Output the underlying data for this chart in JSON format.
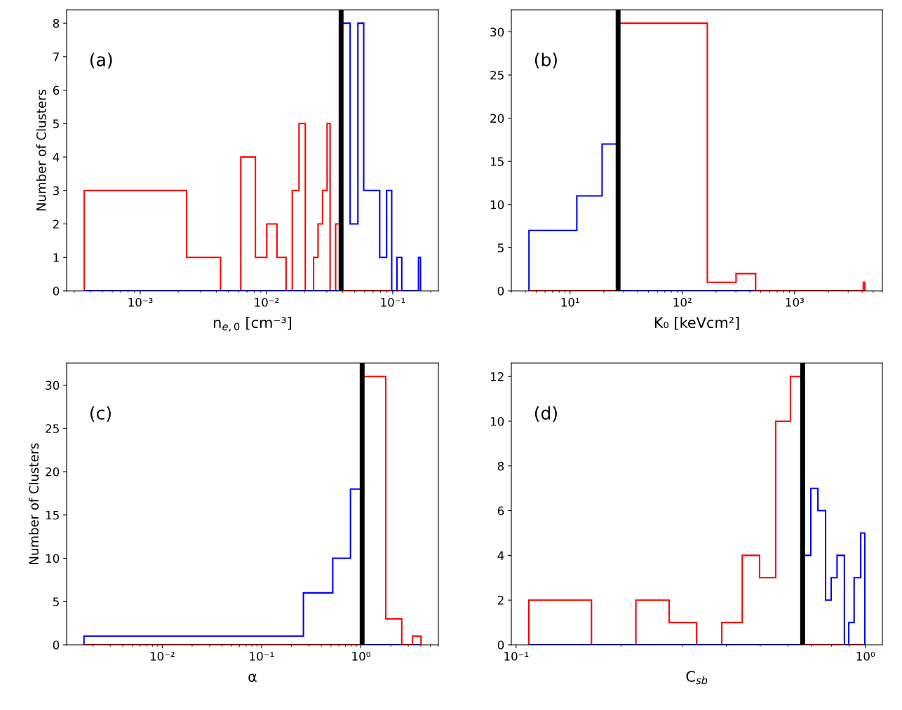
{
  "chart_data": [
    {
      "type": "histogram",
      "xlabel": "n$_{e,0}$ [cm⁻³]",
      "ylabel": "Number of Clusters",
      "annotations": [
        "(a)"
      ],
      "log": "x",
      "xlim": [
        0.000261,
        0.23
      ],
      "xticks": [
        {
          "value": 0.001,
          "label": "10⁻³"
        },
        {
          "value": 0.01,
          "label": "10⁻²"
        },
        {
          "value": 0.1,
          "label": "10⁻¹"
        }
      ],
      "ylim": [
        0,
        8.4
      ],
      "yticks": [
        0,
        1,
        2,
        3,
        4,
        5,
        6,
        7,
        8
      ],
      "bins": [
        0.00036,
        0.00233,
        0.00433,
        0.00626,
        0.00817,
        0.01005,
        0.0121,
        0.0143,
        0.016,
        0.0181,
        0.0203,
        0.0236,
        0.0256,
        0.0278,
        0.0302,
        0.0319,
        0.0353,
        0.0382,
        0.046,
        0.053,
        0.0589,
        0.0789,
        0.0895,
        0.0982,
        0.108,
        0.118,
        0.16,
        0.166
      ],
      "series": [
        {
          "color": "#ff0000",
          "values": [
            3,
            1,
            0,
            4,
            1,
            2,
            1,
            0,
            3,
            5,
            0,
            1,
            2,
            3,
            5,
            0,
            2,
            0,
            0,
            0,
            0,
            0,
            0,
            0,
            0,
            0,
            0
          ]
        },
        {
          "color": "#0000ff",
          "values": [
            0,
            0,
            0,
            0,
            0,
            0,
            0,
            0,
            0,
            0,
            0,
            0,
            0,
            0,
            0,
            0,
            0,
            8,
            2,
            8,
            3,
            1,
            3,
            0,
            1,
            0,
            1
          ]
        }
      ],
      "ref_lines": [
        {
          "axis": "x",
          "value": 0.039,
          "color": "#000000"
        }
      ]
    },
    {
      "type": "histogram",
      "xlabel": "K₀ [keVcm²]",
      "annotations": [
        "(b)"
      ],
      "log": "x",
      "xlim": [
        3.0,
        6050
      ],
      "xticks": [
        {
          "value": 10,
          "label": "10¹"
        },
        {
          "value": 100,
          "label": "10²"
        },
        {
          "value": 1000,
          "label": "10³"
        }
      ],
      "ylim": [
        0,
        32.55
      ],
      "yticks": [
        0,
        5,
        10,
        15,
        20,
        25,
        30
      ],
      "bins": [
        4.31,
        11.5,
        19.3,
        26.8,
        167,
        301,
        450,
        4090,
        4230
      ],
      "series": [
        {
          "color": "#0000ff",
          "values": [
            7,
            11,
            17,
            0,
            0,
            0,
            0,
            0
          ]
        },
        {
          "color": "#ff0000",
          "values": [
            0,
            0,
            0,
            31,
            1,
            2,
            0,
            1
          ]
        }
      ],
      "ref_lines": [
        {
          "axis": "x",
          "value": 26.8,
          "color": "#000000"
        }
      ]
    },
    {
      "type": "histogram",
      "xlabel": "α",
      "ylabel": "Number of Clusters",
      "annotations": [
        "(c)"
      ],
      "log": "x",
      "xlim": [
        0.00109,
        6.03
      ],
      "xticks": [
        {
          "value": 0.01,
          "label": "10⁻²"
        },
        {
          "value": 0.1,
          "label": "10⁻¹"
        },
        {
          "value": 1,
          "label": "10⁰"
        }
      ],
      "ylim": [
        0,
        32.55
      ],
      "yticks": [
        0,
        5,
        10,
        15,
        20,
        25,
        30
      ],
      "bins": [
        0.00163,
        0.264,
        0.521,
        0.786,
        1.03,
        1.78,
        2.58,
        3.31,
        4.03
      ],
      "series": [
        {
          "color": "#0000ff",
          "values": [
            1,
            6,
            10,
            18,
            0,
            0,
            0,
            0
          ]
        },
        {
          "color": "#ff0000",
          "values": [
            0,
            0,
            0,
            0,
            31,
            3,
            0,
            1
          ]
        }
      ],
      "ref_lines": [
        {
          "axis": "x",
          "value": 1.03,
          "color": "#000000"
        }
      ]
    },
    {
      "type": "histogram",
      "xlabel": "C$_{sb}$",
      "annotations": [
        "(d)"
      ],
      "log": "x",
      "xlim": [
        0.0969,
        1.119
      ],
      "xticks": [
        {
          "value": 0.1,
          "label": "10⁻¹"
        },
        {
          "value": 1,
          "label": "10⁰"
        }
      ],
      "ylim": [
        0,
        12.6
      ],
      "yticks": [
        0,
        2,
        4,
        6,
        8,
        10,
        12
      ],
      "bins": [
        0.1088,
        0.1644,
        0.2203,
        0.2744,
        0.3288,
        0.3881,
        0.4443,
        0.498,
        0.5538,
        0.6105,
        0.6615,
        0.698,
        0.7317,
        0.7695,
        0.7986,
        0.83,
        0.8713,
        0.8966,
        0.9288,
        0.9703,
        0.9966
      ],
      "series": [
        {
          "color": "#ff0000",
          "values": [
            2,
            0,
            2,
            1,
            0,
            1,
            4,
            3,
            10,
            12,
            0,
            0,
            0,
            0,
            0,
            0,
            0,
            0,
            0,
            0
          ]
        },
        {
          "color": "#0000ff",
          "values": [
            0,
            0,
            0,
            0,
            0,
            0,
            0,
            0,
            0,
            0,
            4,
            7,
            6,
            2,
            3,
            4,
            0,
            1,
            3,
            5
          ]
        }
      ],
      "ref_lines": [
        {
          "axis": "x",
          "value": 0.6615,
          "color": "#000000"
        }
      ]
    }
  ]
}
